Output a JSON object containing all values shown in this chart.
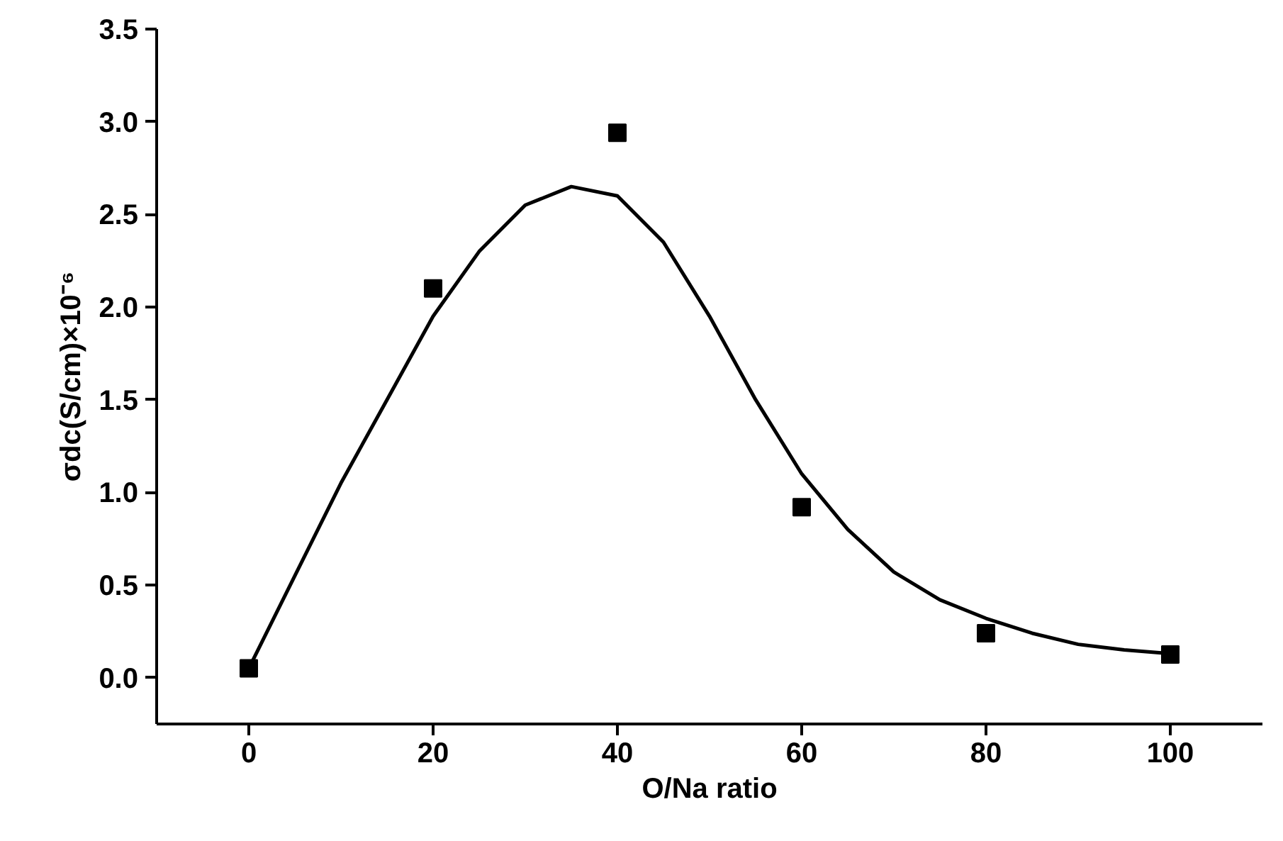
{
  "chart_data": {
    "type": "scatter",
    "xlabel": "O/Na ratio",
    "ylabel": "σdc(S/cm)×10⁻⁶",
    "xlim": [
      -10,
      110
    ],
    "ylim": [
      -0.25,
      3.5
    ],
    "xticks": [
      0,
      20,
      40,
      60,
      80,
      100
    ],
    "yticks": [
      {
        "value": 0,
        "label": "0.0"
      },
      0.5,
      {
        "value": 1,
        "label": "1.0"
      },
      1.5,
      {
        "value": 2,
        "label": "2.0"
      },
      2.5,
      {
        "value": 3,
        "label": "3.0"
      },
      3.5
    ],
    "grid": false,
    "series": [
      {
        "color": "#000000",
        "marker": "square",
        "x": [
          0,
          20,
          40,
          60,
          80,
          100
        ],
        "values": [
          0.05,
          2.1,
          2.94,
          0.92,
          0.24,
          0.125
        ]
      },
      {
        "type": "line",
        "color": "#000000",
        "line_style": "solid",
        "x": [
          0,
          5,
          10,
          15,
          20,
          25,
          30,
          35,
          40,
          45,
          50,
          55,
          60,
          65,
          70,
          75,
          80,
          85,
          90,
          95,
          100
        ],
        "values": [
          0.05,
          0.55,
          1.05,
          1.5,
          1.95,
          2.3,
          2.55,
          2.65,
          2.6,
          2.35,
          1.95,
          1.5,
          1.1,
          0.8,
          0.57,
          0.42,
          0.32,
          0.24,
          0.18,
          0.15,
          0.13
        ]
      }
    ]
  }
}
